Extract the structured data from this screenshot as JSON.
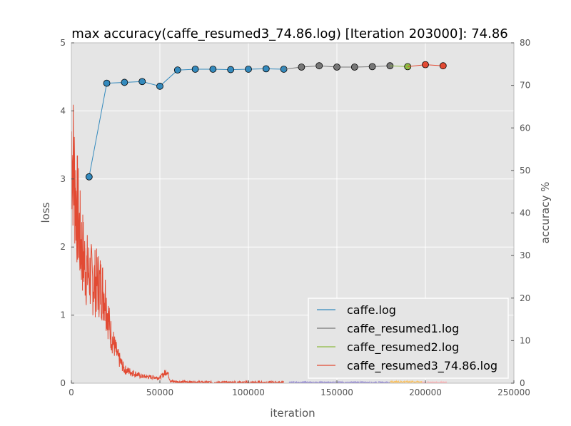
{
  "chart_data": {
    "type": "line",
    "title": "max accuracy(caffe_resumed3_74.86.log) [Iteration 203000]: 74.86",
    "xlabel": "iteration",
    "ylabel_left": "loss",
    "ylabel_right": "accuracy %",
    "xlim": [
      0,
      250000
    ],
    "ylim_left": [
      0,
      5
    ],
    "ylim_right": [
      0,
      80
    ],
    "x_ticks": [
      "0",
      "50000",
      "100000",
      "150000",
      "200000",
      "250000"
    ],
    "y_left_ticks": [
      "0",
      "1",
      "2",
      "3",
      "4",
      "5"
    ],
    "y_right_ticks": [
      "0",
      "10",
      "20",
      "30",
      "40",
      "50",
      "60",
      "70",
      "80"
    ],
    "grid": true,
    "legend_position": "lower-right",
    "colors": {
      "background": "#e5e5e5",
      "grid": "#ffffff",
      "caffe": "#348abd",
      "resumed1": "#777777",
      "resumed2": "#8eba42",
      "resumed3": "#e24a33",
      "loss_purple": "#988ed5",
      "loss_gold": "#fbc15e",
      "loss_pink": "#ffb5b8"
    },
    "series": [
      {
        "name": "caffe.log",
        "color": "#348abd",
        "x": [
          10000,
          20000,
          30000,
          40000,
          50000,
          60000,
          70000,
          80000,
          90000,
          100000,
          110000,
          120000
        ],
        "accuracy": [
          48.5,
          70.5,
          70.7,
          70.9,
          69.8,
          73.6,
          73.8,
          73.8,
          73.7,
          73.8,
          73.9,
          73.8
        ]
      },
      {
        "name": "caffe_resumed1.log",
        "color": "#777777",
        "x": [
          130000,
          140000,
          150000,
          160000,
          170000,
          180000
        ],
        "accuracy": [
          74.3,
          74.6,
          74.3,
          74.3,
          74.4,
          74.6
        ]
      },
      {
        "name": "caffe_resumed2.log",
        "color": "#8eba42",
        "x": [
          190000
        ],
        "accuracy": [
          74.4
        ]
      },
      {
        "name": "caffe_resumed3_74.86.log",
        "color": "#e24a33",
        "x": [
          200000,
          210000
        ],
        "accuracy": [
          74.86,
          74.6
        ]
      }
    ],
    "loss_curves": [
      {
        "color": "#e24a33",
        "x": [
          0,
          2000,
          5000,
          8000,
          12000,
          16000,
          19000,
          22000,
          26000,
          30000,
          40000,
          50000,
          54000,
          56000,
          60000,
          80000,
          120000
        ],
        "loss": [
          3.6,
          2.9,
          2.1,
          1.7,
          1.5,
          1.45,
          1.3,
          0.75,
          0.4,
          0.2,
          0.1,
          0.08,
          0.18,
          0.03,
          0.02,
          0.01,
          0.01
        ]
      },
      {
        "color": "#988ed5",
        "x": [
          123000,
          180000
        ],
        "loss": [
          0.01,
          0.01
        ]
      },
      {
        "color": "#fbc15e",
        "x": [
          180000,
          198000
        ],
        "loss": [
          0.02,
          0.02
        ]
      },
      {
        "color": "#ffb5b8",
        "x": [
          198000,
          212000
        ],
        "loss": [
          0.01,
          0.01
        ]
      }
    ]
  }
}
